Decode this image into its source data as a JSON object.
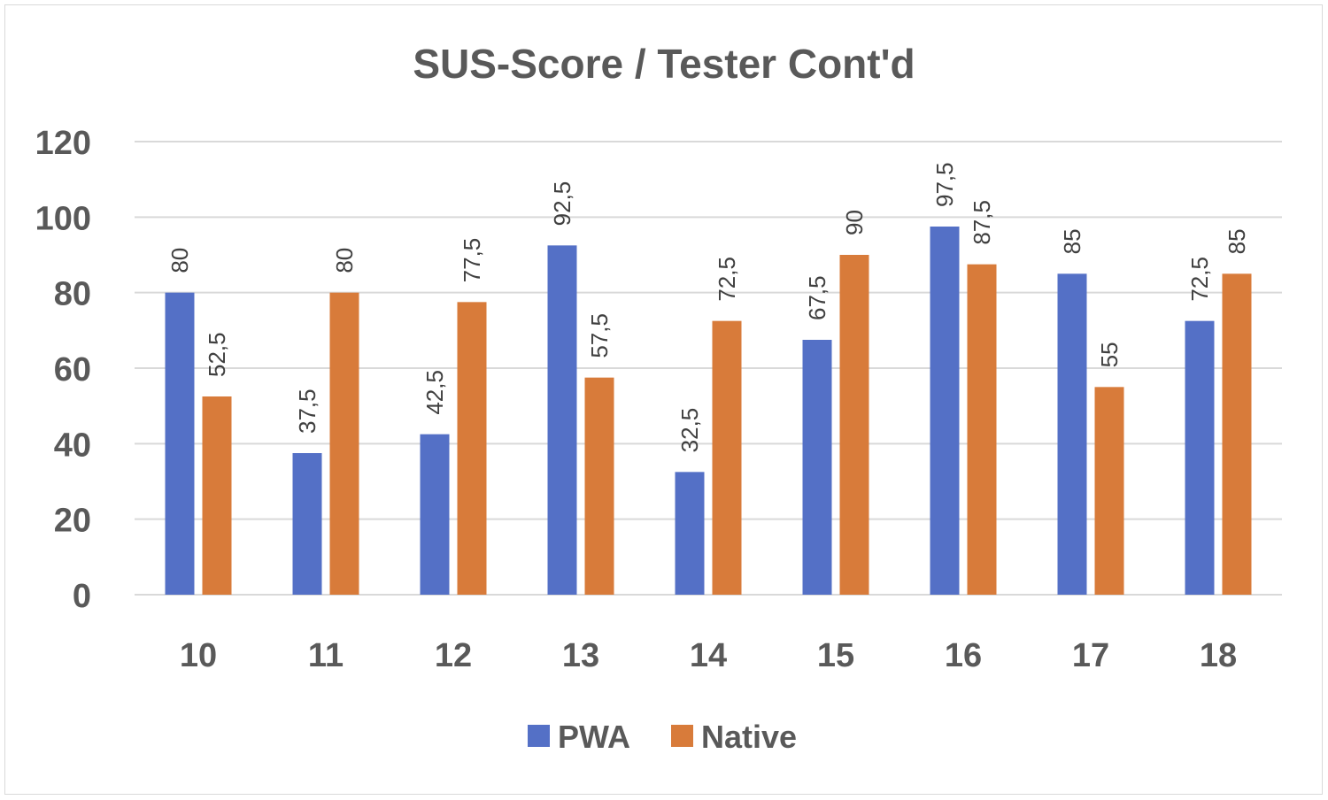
{
  "chart_data": {
    "type": "bar",
    "title": "SUS-Score / Tester Cont'd",
    "xlabel": "",
    "ylabel": "",
    "categories": [
      "10",
      "11",
      "12",
      "13",
      "14",
      "15",
      "16",
      "17",
      "18"
    ],
    "series": [
      {
        "name": "PWA",
        "color": "#5470c6",
        "values": [
          80,
          37.5,
          42.5,
          92.5,
          32.5,
          67.5,
          97.5,
          85,
          72.5
        ],
        "labels": [
          "80",
          "37,5",
          "42,5",
          "92,5",
          "32,5",
          "67,5",
          "97,5",
          "85",
          "72,5"
        ]
      },
      {
        "name": "Native",
        "color": "#d87b3a",
        "values": [
          52.5,
          80,
          77.5,
          57.5,
          72.5,
          90,
          87.5,
          55,
          85
        ],
        "labels": [
          "52,5",
          "80",
          "77,5",
          "57,5",
          "72,5",
          "90",
          "87,5",
          "55",
          "85"
        ]
      }
    ],
    "ylim": [
      0,
      120
    ],
    "yticks": [
      0,
      20,
      40,
      60,
      80,
      100,
      120
    ],
    "grid": true,
    "legend": "bottom"
  }
}
